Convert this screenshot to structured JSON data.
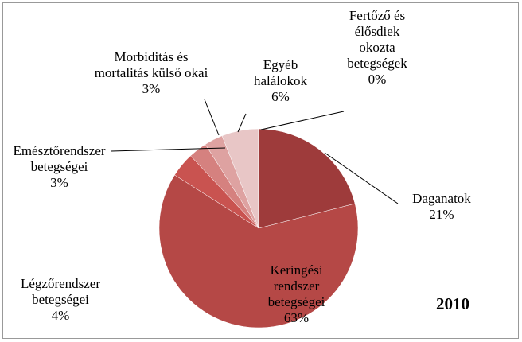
{
  "chart_data": {
    "type": "pie",
    "categories": [
      "Fertőző és élősdiek okozta betegségek",
      "Daganatok",
      "Keringési rendszer betegségei",
      "Légzőrendszer betegségei",
      "Emésztőrendszer betegségei",
      "Morbiditás és mortalitás külső okai",
      "Egyéb halálokok"
    ],
    "values": [
      0,
      21,
      63,
      4,
      3,
      3,
      6
    ],
    "value_labels": [
      "0%",
      "21%",
      "63%",
      "4%",
      "3%",
      "3%",
      "6%"
    ],
    "colors": [
      "#8b2e2e",
      "#9e3b3b",
      "#b54846",
      "#c95350",
      "#d5817f",
      "#dea2a1",
      "#e8c6c6"
    ],
    "annotation": "2010"
  }
}
